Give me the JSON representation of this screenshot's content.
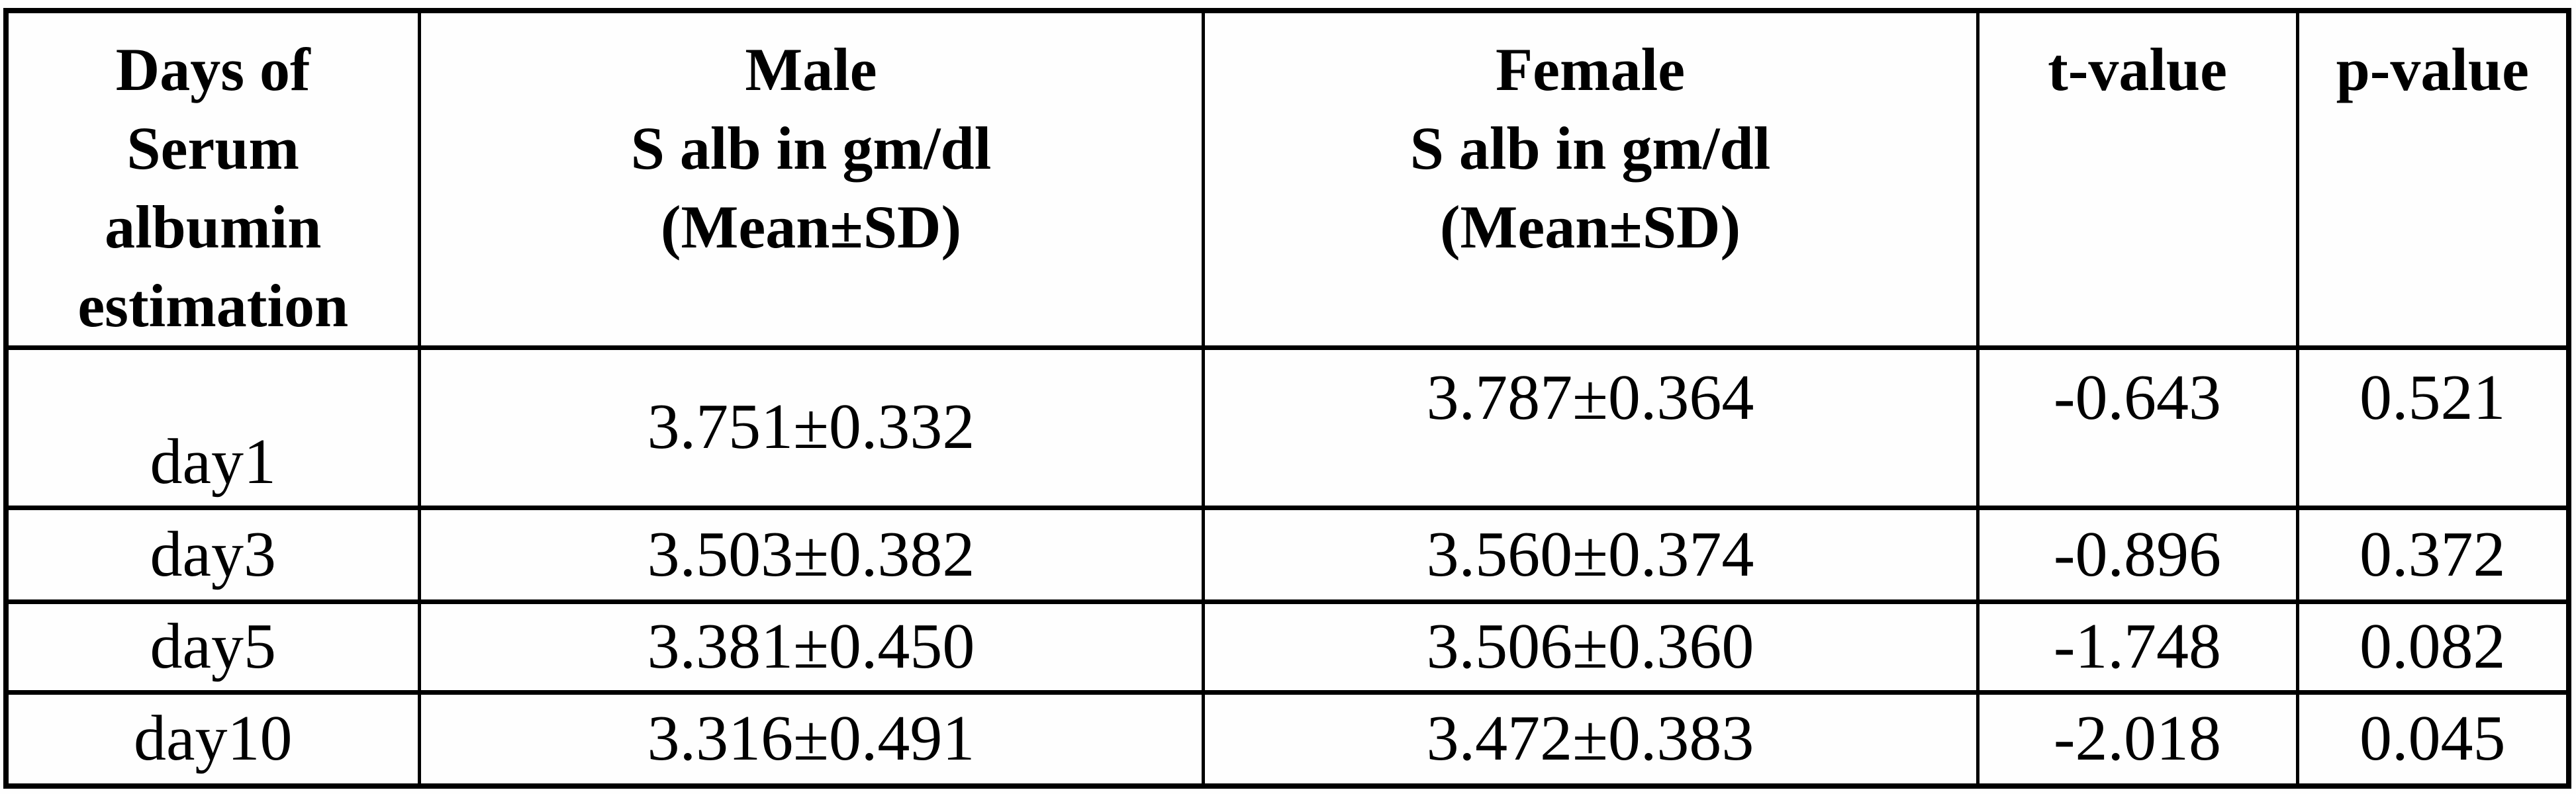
{
  "table": {
    "columns": [
      {
        "id": "day",
        "header_lines": [
          "Days of",
          "Serum",
          "albumin",
          "estimation"
        ]
      },
      {
        "id": "male",
        "header_lines": [
          "Male",
          "S alb in gm/dl",
          "(Mean±SD)"
        ]
      },
      {
        "id": "female",
        "header_lines": [
          "Female",
          "S alb in gm/dl",
          "(Mean±SD)"
        ]
      },
      {
        "id": "t",
        "header_lines": [
          "t-value"
        ]
      },
      {
        "id": "p",
        "header_lines": [
          "p-value"
        ]
      }
    ],
    "rows": [
      {
        "day": "day1",
        "male": "3.751±0.332",
        "female": "3.787±0.364",
        "t": "-0.643",
        "p": "0.521"
      },
      {
        "day": "day3",
        "male": "3.503±0.382",
        "female": "3.560±0.374",
        "t": "-0.896",
        "p": "0.372"
      },
      {
        "day": "day5",
        "male": "3.381±0.450",
        "female": "3.506±0.360",
        "t": "-1.748",
        "p": "0.082"
      },
      {
        "day": "day10",
        "male": "3.316±0.491",
        "female": "3.472±0.383",
        "t": "-2.018",
        "p": "0.045"
      }
    ]
  },
  "chart_data": {
    "type": "table",
    "title": "Serum albumin (S alb, gm/dl) by gender across days of estimation",
    "categories": [
      "day1",
      "day3",
      "day5",
      "day10"
    ],
    "series": [
      {
        "name": "Male mean",
        "values": [
          3.751,
          3.503,
          3.381,
          3.316
        ]
      },
      {
        "name": "Male SD",
        "values": [
          0.332,
          0.382,
          0.45,
          0.491
        ]
      },
      {
        "name": "Female mean",
        "values": [
          3.787,
          3.56,
          3.506,
          3.472
        ]
      },
      {
        "name": "Female SD",
        "values": [
          0.364,
          0.374,
          0.36,
          0.383
        ]
      },
      {
        "name": "t-value",
        "values": [
          -0.643,
          -0.896,
          -1.748,
          -2.018
        ]
      },
      {
        "name": "p-value",
        "values": [
          0.521,
          0.372,
          0.082,
          0.045
        ]
      }
    ]
  },
  "colors": {
    "border": "#000000",
    "text": "#000000",
    "background": "#fefefe"
  }
}
